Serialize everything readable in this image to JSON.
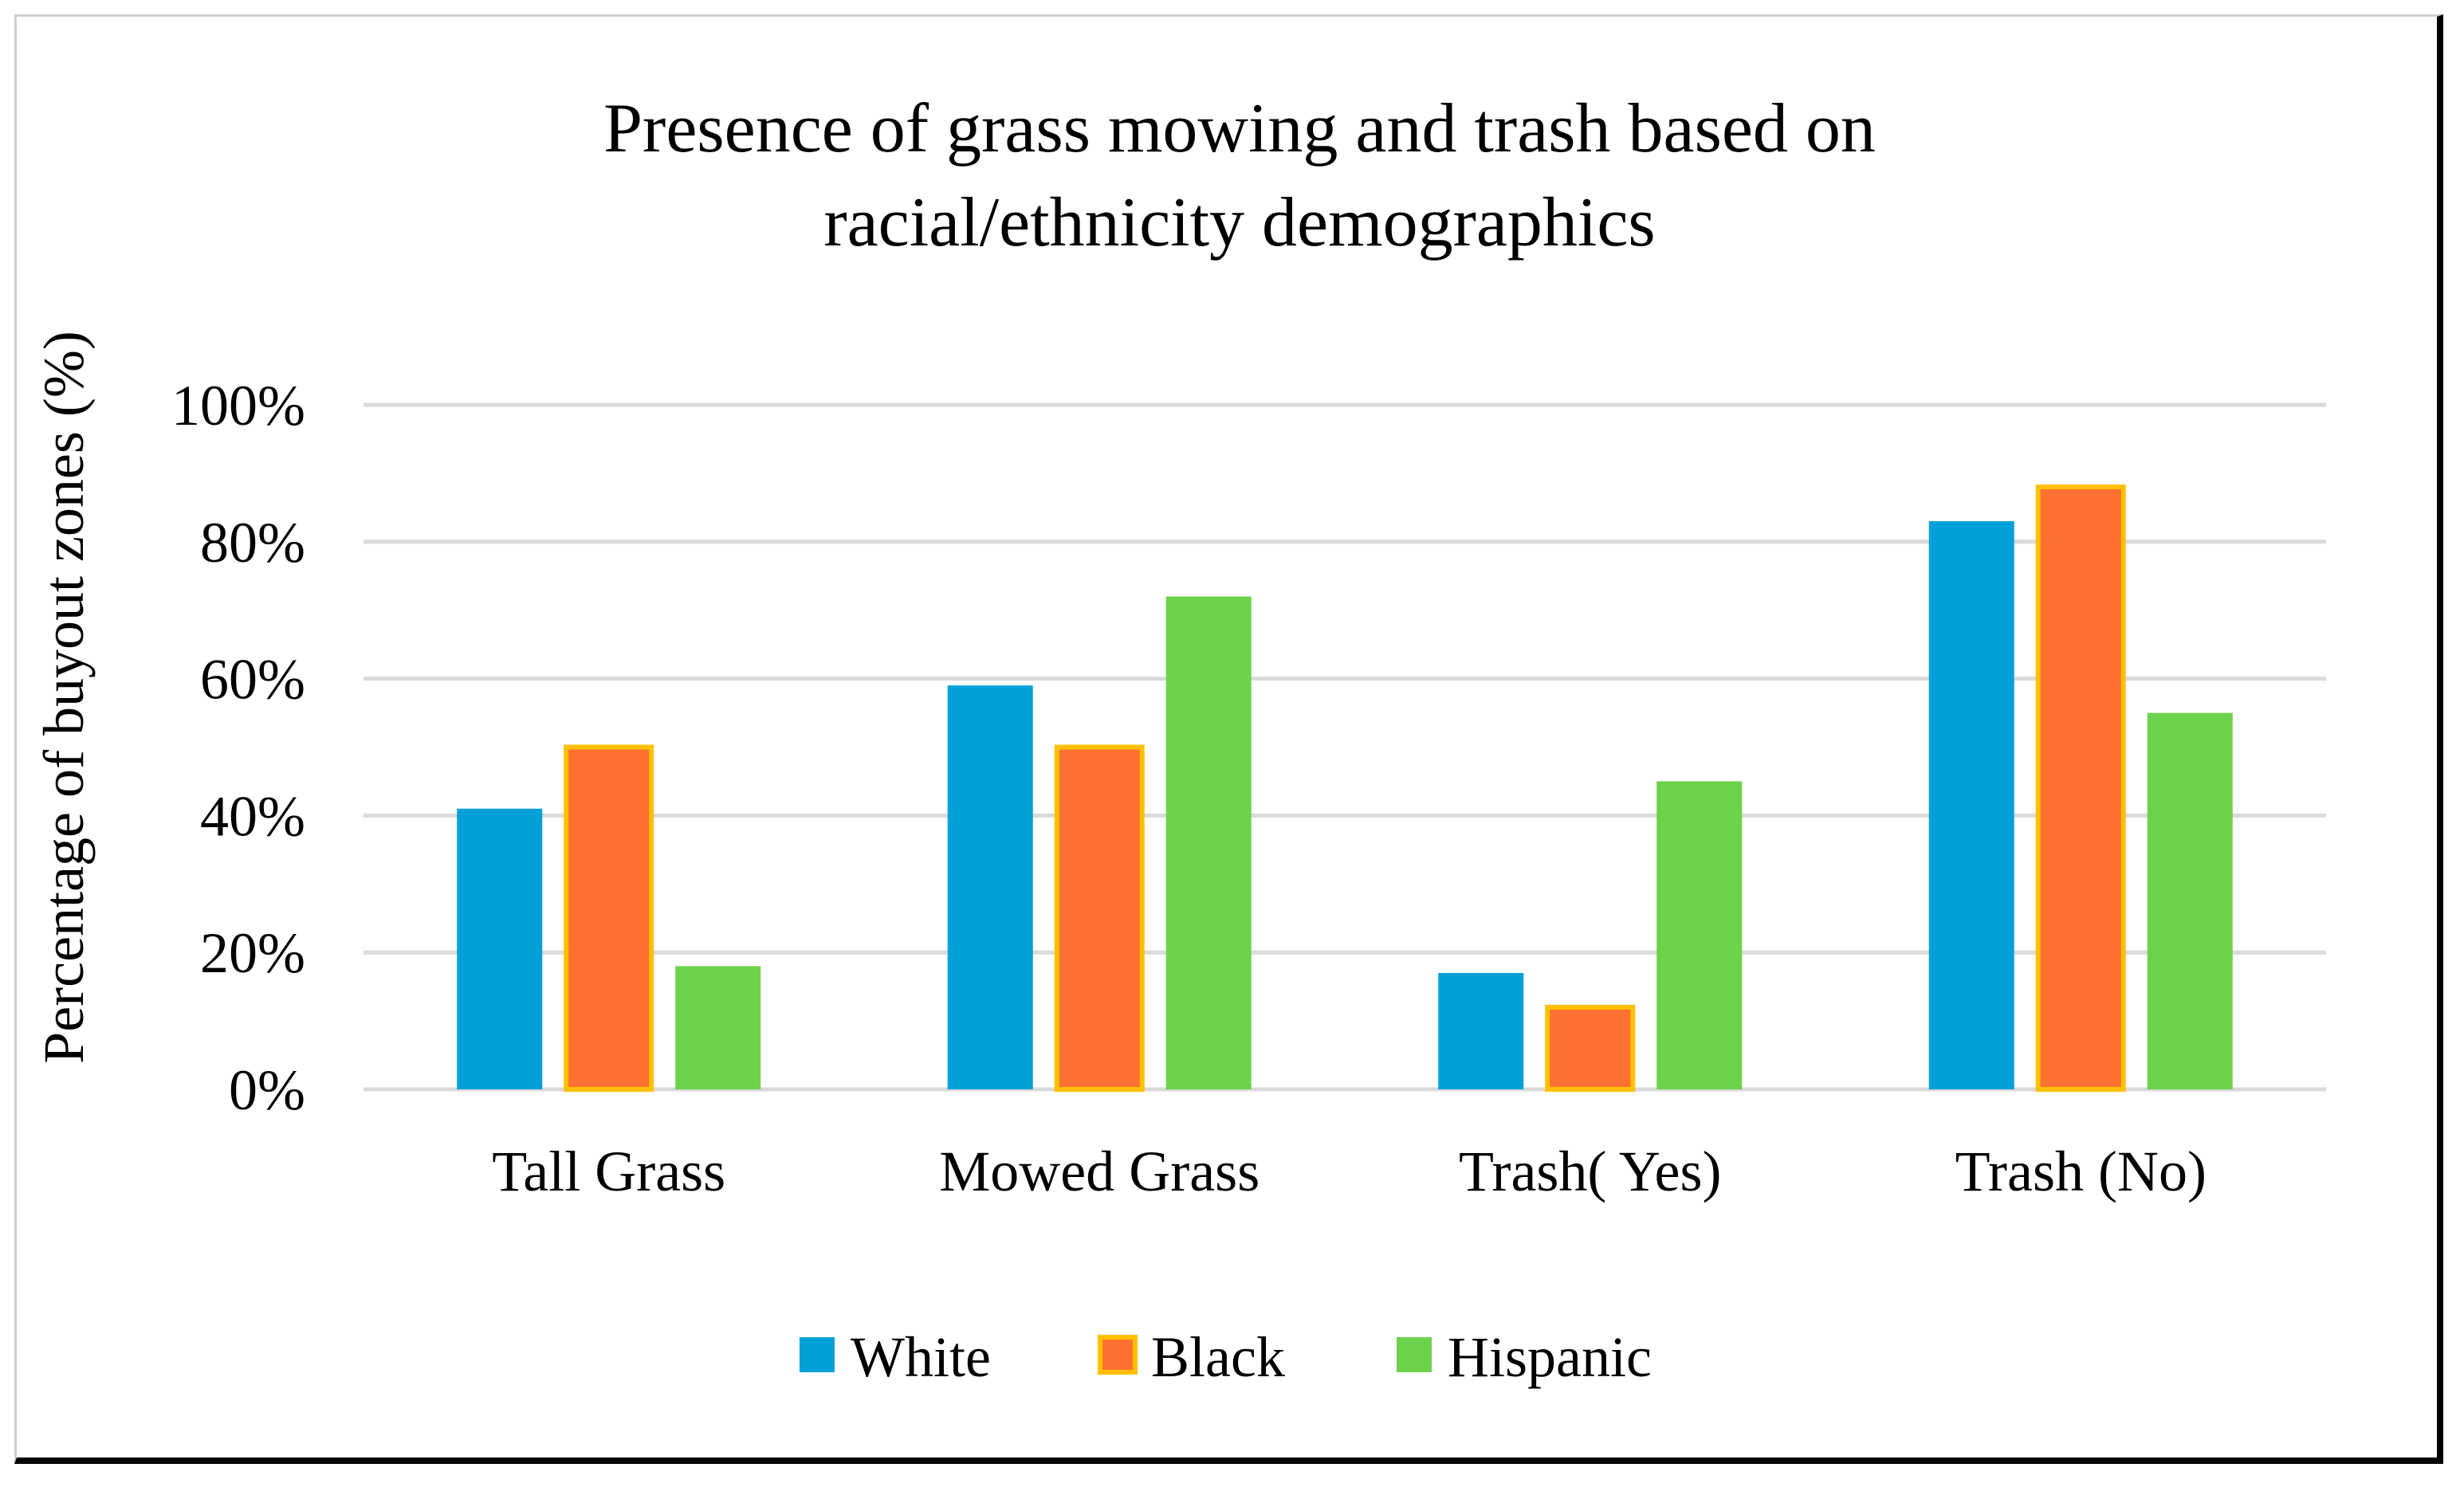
{
  "chart_data": {
    "type": "bar",
    "title": [
      "Presence of grass mowing and trash based on",
      "racial/ethnicity demographics"
    ],
    "xlabel": "",
    "ylabel": "Percentage of buyout zones (%)",
    "categories": [
      "Tall Grass",
      "Mowed Grass",
      "Trash( Yes)",
      "Trash (No)"
    ],
    "series": [
      {
        "name": "White",
        "color": "#00A0D8",
        "outline": "",
        "values": [
          41,
          59,
          17,
          83
        ]
      },
      {
        "name": "Black",
        "color": "#FF7130",
        "outline": "#FFC000",
        "values": [
          50,
          50,
          12,
          88
        ]
      },
      {
        "name": "Hispanic",
        "color": "#6CD24C",
        "outline": "",
        "values": [
          18,
          72,
          45,
          55
        ]
      }
    ],
    "ylim": [
      0,
      100
    ],
    "yticks": [
      0,
      20,
      40,
      60,
      80,
      100
    ],
    "ytick_labels": [
      "0%",
      "20%",
      "40%",
      "60%",
      "80%",
      "100%"
    ],
    "grid": true,
    "legend": "bottom-center"
  }
}
